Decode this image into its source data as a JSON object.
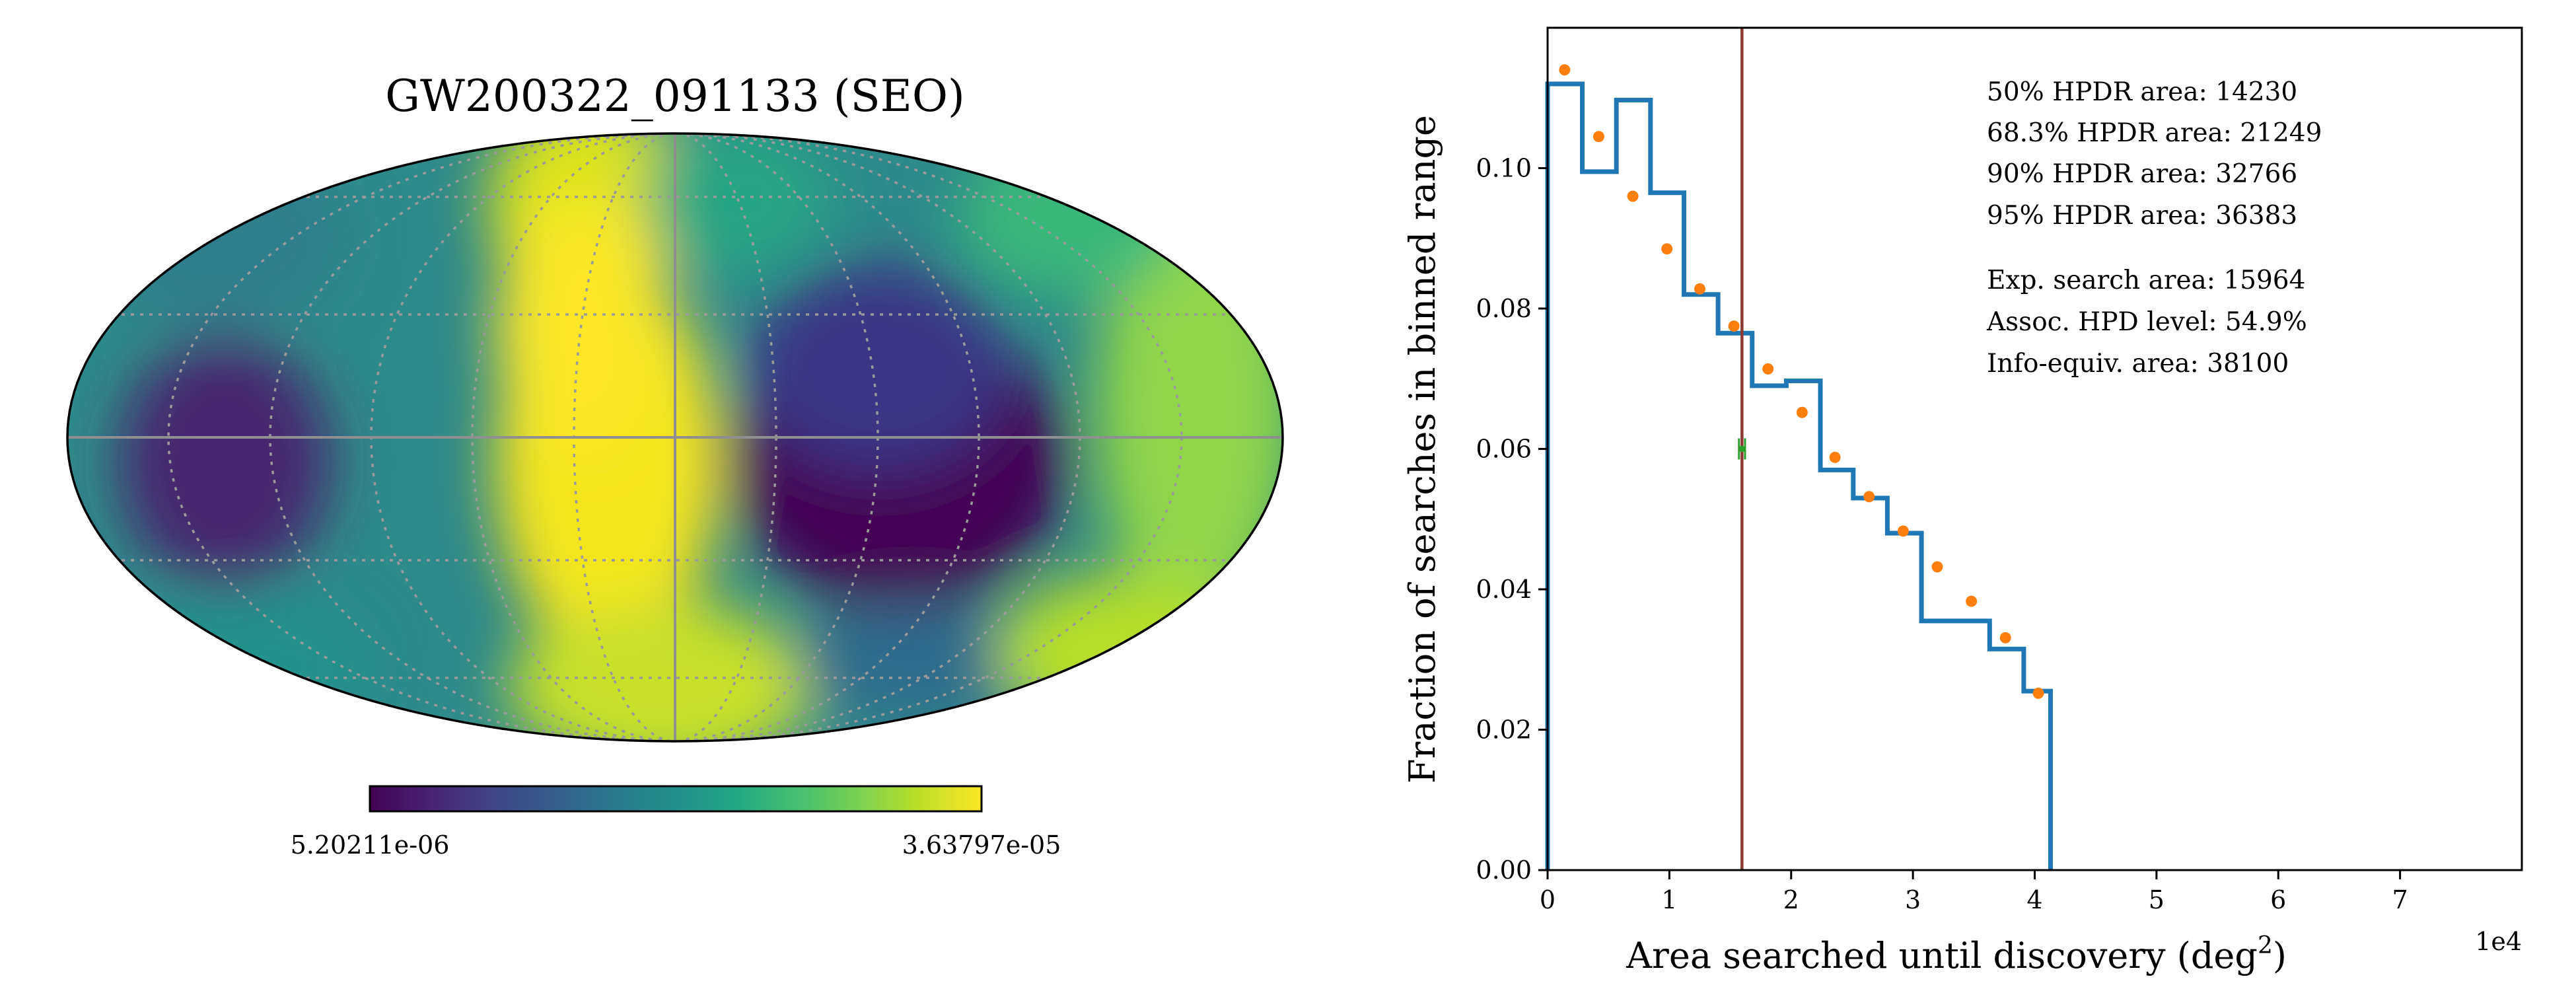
{
  "chart_data": [
    {
      "type": "heatmap",
      "projection": "mollweide",
      "title": "GW200322_091133 (SEO)",
      "colormap": "viridis",
      "colorbar": {
        "min_label": "5.20211e-06",
        "max_label": "3.63797e-05"
      },
      "grid": true,
      "features": [
        {
          "kind": "high",
          "description": "bright yellow band tilting from upper-left to lower-centre"
        },
        {
          "kind": "low",
          "description": "dark purple minimum right of centre near equator"
        },
        {
          "kind": "low",
          "description": "purple minimum at far left near equator"
        },
        {
          "kind": "high",
          "description": "green-yellow arc on the right side"
        }
      ]
    },
    {
      "type": "bar",
      "style": "step-histogram with point overlay",
      "xlabel": "Area searched until discovery (deg$^2$)",
      "xlabel_display": {
        "main": "Area searched until discovery (deg",
        "sup": "2",
        "end": ")"
      },
      "ylabel": "Fraction of searches in binned range",
      "x_multiplier": "1e4",
      "xlim": [
        0,
        80000
      ],
      "ylim": [
        0,
        0.12
      ],
      "x_ticks": [
        {
          "value": 0,
          "label": "0"
        },
        {
          "value": 10000,
          "label": "1"
        },
        {
          "value": 20000,
          "label": "2"
        },
        {
          "value": 30000,
          "label": "3"
        },
        {
          "value": 40000,
          "label": "4"
        },
        {
          "value": 50000,
          "label": "5"
        },
        {
          "value": 60000,
          "label": "6"
        },
        {
          "value": 70000,
          "label": "7"
        }
      ],
      "y_ticks": [
        {
          "value": 0,
          "label": "0.00"
        },
        {
          "value": 0.02,
          "label": "0.02"
        },
        {
          "value": 0.04,
          "label": "0.04"
        },
        {
          "value": 0.06,
          "label": "0.06"
        },
        {
          "value": 0.08,
          "label": "0.08"
        },
        {
          "value": 0.1,
          "label": "0.10"
        }
      ],
      "histogram": {
        "color": "#1f77b4",
        "bin_edges": [
          0,
          2850,
          5650,
          8450,
          11200,
          14000,
          16800,
          19600,
          22400,
          25100,
          27900,
          30700,
          33500,
          36300,
          39100,
          41300
        ],
        "values": [
          0.112,
          0.0995,
          0.1097,
          0.0965,
          0.082,
          0.0765,
          0.069,
          0.0697,
          0.057,
          0.053,
          0.048,
          0.0355,
          0.0355,
          0.0315,
          0.0255
        ]
      },
      "points": {
        "color": "#ff7f0e",
        "x": [
          1400,
          4200,
          7000,
          9800,
          12500,
          15300,
          18100,
          20900,
          23600,
          26400,
          29200,
          32000,
          34800,
          37600,
          40300
        ],
        "y": [
          0.114,
          0.1045,
          0.096,
          0.0885,
          0.0828,
          0.0775,
          0.0714,
          0.0652,
          0.0588,
          0.0532,
          0.0483,
          0.0432,
          0.0383,
          0.0331,
          0.0252
        ]
      },
      "vline": {
        "x": 15964,
        "color": "#8c3b33"
      },
      "marker": {
        "x": 15964,
        "y": 0.06,
        "xerr": 250,
        "color": "#2ca02c"
      },
      "annotations": [
        "50% HPDR area: 14230",
        "68.3% HPDR area: 21249",
        "90% HPDR area: 32766",
        "95% HPDR area: 36383",
        "Exp. search area: 15964",
        "Assoc. HPD level: 54.9%",
        "Info-equiv. area: 38100"
      ]
    }
  ]
}
